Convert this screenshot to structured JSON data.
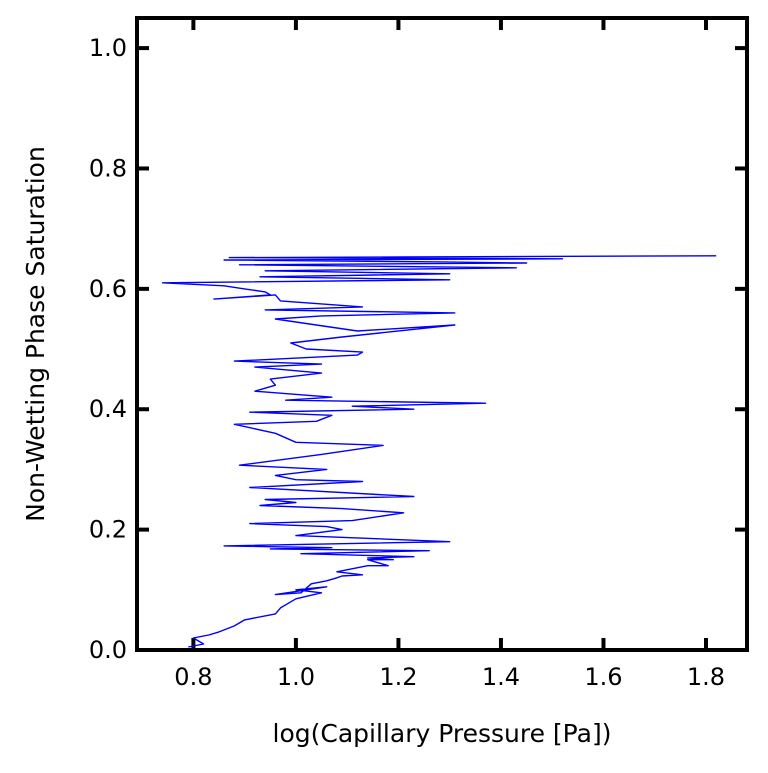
{
  "chart_data": {
    "type": "line",
    "title": "",
    "xlabel": "log(Capillary Pressure [Pa])",
    "ylabel": "Non-Wetting Phase Saturation",
    "xlim": [
      0.69,
      1.88
    ],
    "ylim": [
      0.0,
      1.05
    ],
    "xticks": [
      0.8,
      1.0,
      1.2,
      1.4,
      1.6,
      1.8
    ],
    "xtick_labels": [
      "0.8",
      "1.0",
      "1.2",
      "1.4",
      "1.6",
      "1.8"
    ],
    "yticks": [
      0.0,
      0.2,
      0.4,
      0.6,
      0.8,
      1.0
    ],
    "ytick_labels": [
      "0.0",
      "0.2",
      "0.4",
      "0.6",
      "0.8",
      "1.0"
    ],
    "grid": false,
    "legend": "none",
    "line_color": "#0000ff",
    "series": [
      {
        "x": [
          0.79,
          0.82,
          0.8,
          0.83,
          0.85,
          0.88,
          0.9,
          0.96,
          0.97,
          0.99,
          1.0,
          1.05,
          1.0,
          1.06,
          0.96,
          1.01,
          1.03,
          1.06,
          1.08,
          1.09,
          1.13,
          1.08,
          1.14,
          1.18,
          1.14,
          1.19,
          1.14,
          1.23,
          1.01,
          1.26,
          0.95,
          1.07,
          0.86,
          1.3,
          1.15,
          1.0,
          1.09,
          1.06,
          0.91,
          1.11,
          1.21,
          1.09,
          0.93,
          1.0,
          0.94,
          1.23,
          0.91,
          1.13,
          1.0,
          0.96,
          1.06,
          0.89,
          1.05,
          1.17,
          1.0,
          0.96,
          0.88,
          1.04,
          1.07,
          0.91,
          1.23,
          1.11,
          1.37,
          0.98,
          1.07,
          0.92,
          0.96,
          0.95,
          1.05,
          0.92,
          1.05,
          0.88,
          1.12,
          1.13,
          1.02,
          0.99,
          1.09,
          1.31,
          1.12,
          0.96,
          1.05,
          1.31,
          0.94,
          1.13,
          0.97,
          0.96,
          0.84,
          0.95,
          0.94,
          0.9,
          0.86,
          0.74,
          1.3,
          0.93,
          1.3,
          0.94,
          1.43,
          0.89,
          1.45,
          1.26,
          0.86,
          1.52,
          0.87,
          1.21,
          1.82
        ],
        "y": [
          0.005,
          0.01,
          0.02,
          0.025,
          0.03,
          0.04,
          0.05,
          0.06,
          0.07,
          0.08,
          0.085,
          0.095,
          0.1,
          0.105,
          0.092,
          0.095,
          0.11,
          0.115,
          0.12,
          0.123,
          0.125,
          0.13,
          0.14,
          0.14,
          0.15,
          0.15,
          0.153,
          0.155,
          0.16,
          0.165,
          0.168,
          0.17,
          0.173,
          0.18,
          0.185,
          0.19,
          0.2,
          0.205,
          0.21,
          0.215,
          0.228,
          0.235,
          0.24,
          0.245,
          0.25,
          0.255,
          0.27,
          0.28,
          0.283,
          0.29,
          0.3,
          0.307,
          0.325,
          0.34,
          0.345,
          0.36,
          0.375,
          0.38,
          0.39,
          0.395,
          0.4,
          0.405,
          0.41,
          0.415,
          0.42,
          0.43,
          0.44,
          0.45,
          0.46,
          0.47,
          0.475,
          0.48,
          0.49,
          0.495,
          0.5,
          0.51,
          0.52,
          0.54,
          0.53,
          0.55,
          0.555,
          0.56,
          0.565,
          0.57,
          0.58,
          0.59,
          0.583,
          0.59,
          0.595,
          0.6,
          0.605,
          0.61,
          0.615,
          0.62,
          0.625,
          0.63,
          0.635,
          0.64,
          0.643,
          0.645,
          0.648,
          0.65,
          0.652,
          0.653,
          0.655
        ]
      }
    ]
  }
}
